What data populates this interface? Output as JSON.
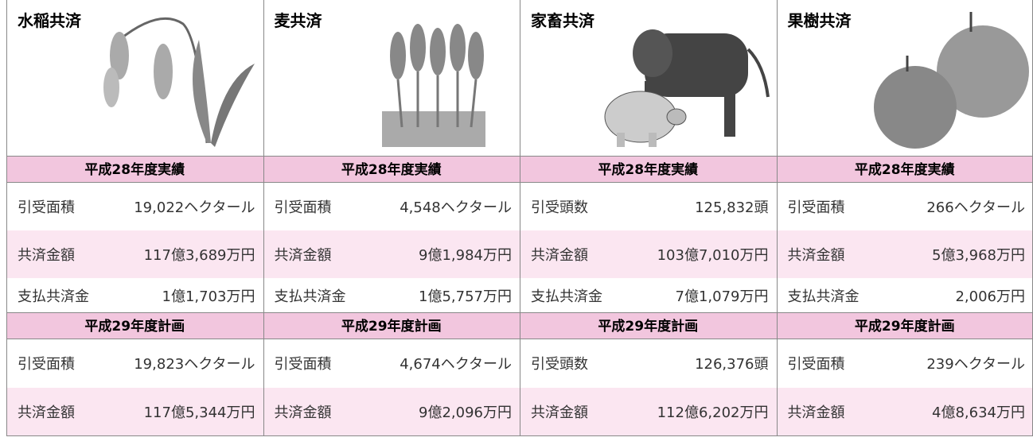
{
  "columns": [
    {
      "title": "水稲共済",
      "sections": [
        {
          "heading": "平成28年度実績",
          "rows": [
            [
              "引受面積",
              "19,022ヘクタール"
            ],
            [
              "共済金額",
              "117億3,689万円"
            ],
            [
              "支払共済金",
              "1億1,703万円"
            ]
          ]
        },
        {
          "heading": "平成29年度計画",
          "rows": [
            [
              "引受面積",
              "19,823ヘクタール"
            ],
            [
              "共済金額",
              "117億5,344万円"
            ]
          ]
        }
      ]
    },
    {
      "title": "麦共済",
      "sections": [
        {
          "heading": "平成28年度実績",
          "rows": [
            [
              "引受面積",
              "4,548ヘクタール"
            ],
            [
              "共済金額",
              "9億1,984万円"
            ],
            [
              "支払共済金",
              "1億5,757万円"
            ]
          ]
        },
        {
          "heading": "平成29年度計画",
          "rows": [
            [
              "引受面積",
              "4,674ヘクタール"
            ],
            [
              "共済金額",
              "9億2,096万円"
            ]
          ]
        }
      ]
    },
    {
      "title": "家畜共済",
      "sections": [
        {
          "heading": "平成28年度実績",
          "rows": [
            [
              "引受頭数",
              "125,832頭"
            ],
            [
              "共済金額",
              "103億7,010万円"
            ],
            [
              "支払共済金",
              "7億1,079万円"
            ]
          ]
        },
        {
          "heading": "平成29年度計画",
          "rows": [
            [
              "引受頭数",
              "126,376頭"
            ],
            [
              "共済金額",
              "112億6,202万円"
            ]
          ]
        }
      ]
    },
    {
      "title": "果樹共済",
      "sections": [
        {
          "heading": "平成28年度実績",
          "rows": [
            [
              "引受面積",
              "266ヘクタール"
            ],
            [
              "共済金額",
              "5億3,968万円"
            ],
            [
              "支払共済金",
              "2,006万円"
            ]
          ]
        },
        {
          "heading": "平成29年度計画",
          "rows": [
            [
              "引受面積",
              "239ヘクタール"
            ],
            [
              "共済金額",
              "4億8,634万円"
            ]
          ]
        }
      ]
    }
  ]
}
